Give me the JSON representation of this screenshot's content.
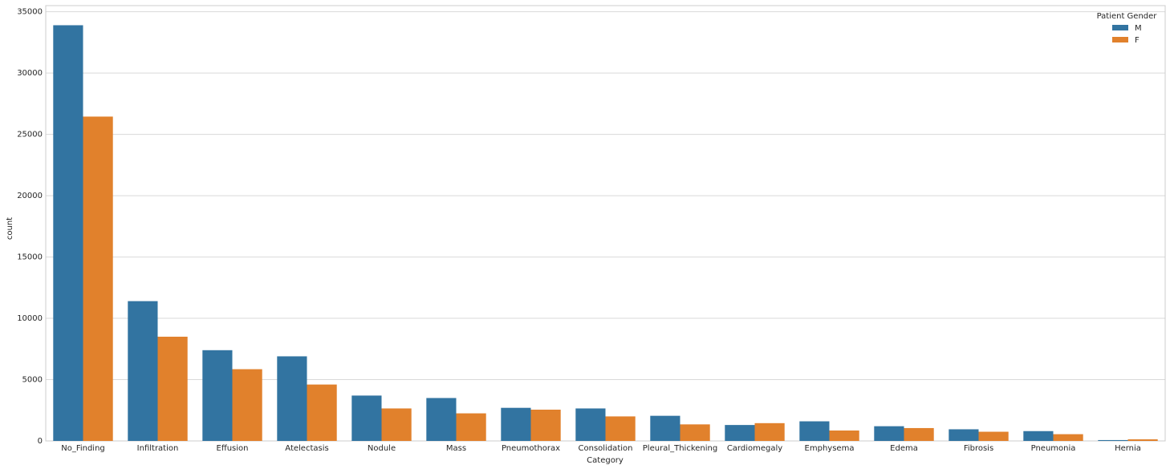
{
  "chart_data": {
    "type": "bar",
    "xlabel": "Category",
    "ylabel": "count",
    "categories": [
      "No_Finding",
      "Infiltration",
      "Effusion",
      "Atelectasis",
      "Nodule",
      "Mass",
      "Pneumothorax",
      "Consolidation",
      "Pleural_Thickening",
      "Cardiomegaly",
      "Emphysema",
      "Edema",
      "Fibrosis",
      "Pneumonia",
      "Hernia"
    ],
    "legend_title": "Patient Gender",
    "legend_position": "upper-right",
    "series": [
      {
        "name": "M",
        "color": "#3274a1",
        "values": [
          33900,
          11400,
          7400,
          6900,
          3700,
          3500,
          2700,
          2650,
          2050,
          1300,
          1600,
          1200,
          950,
          800,
          70
        ]
      },
      {
        "name": "F",
        "color": "#e1812c",
        "values": [
          26450,
          8500,
          5850,
          4600,
          2650,
          2250,
          2550,
          2000,
          1350,
          1450,
          850,
          1050,
          750,
          550,
          130
        ]
      }
    ],
    "ylim": [
      0,
      35500
    ],
    "yticks": [
      0,
      5000,
      10000,
      15000,
      20000,
      25000,
      30000,
      35000
    ],
    "grid": true
  }
}
